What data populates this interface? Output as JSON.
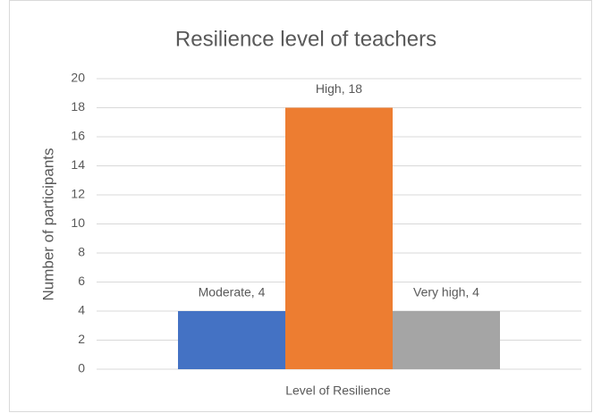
{
  "chart_data": {
    "type": "bar",
    "title": "Resilience level of teachers",
    "xlabel": "Level of Resilience",
    "ylabel": "Number of participants",
    "categories": [
      null,
      null,
      null
    ],
    "values": [
      4,
      18,
      4
    ],
    "value_labels": [
      "Moderate, 4",
      "High, 18",
      "Very high, 4"
    ],
    "colors": [
      "#4472c4",
      "#ed7d31",
      "#a5a5a5"
    ],
    "ylim": [
      0,
      20
    ],
    "yticks": [
      0,
      2,
      4,
      6,
      8,
      10,
      12,
      14,
      16,
      18,
      20
    ],
    "grid": true
  }
}
